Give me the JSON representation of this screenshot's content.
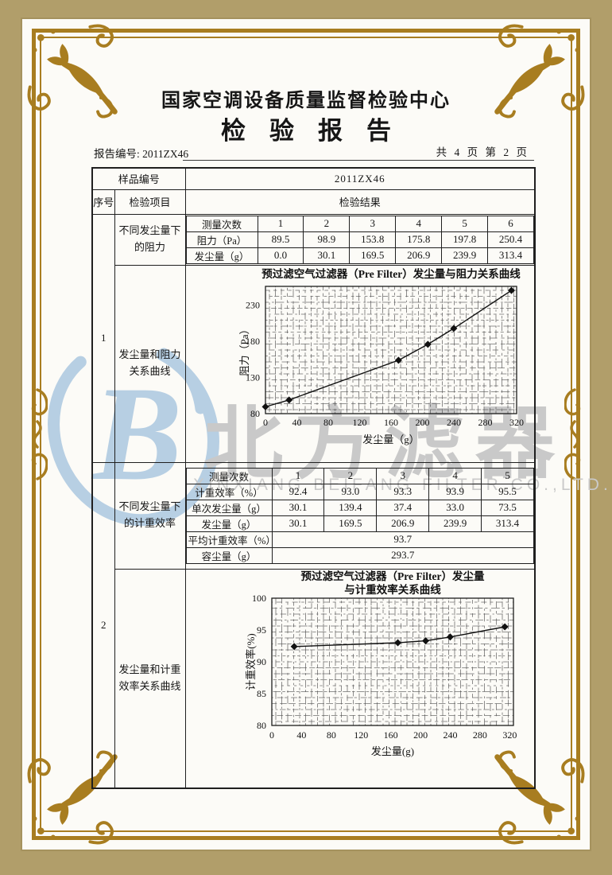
{
  "header": {
    "center_name": "国家空调设备质量监督检验中心",
    "report_title": "检验报告",
    "report_no": "报告编号: 2011ZX46",
    "page_info": "共 4 页 第 2 页"
  },
  "sample": {
    "label": "样品编号",
    "value": "2011ZX46"
  },
  "table": {
    "col_headers": {
      "seq": "序号",
      "item": "检验项目",
      "result": "检验结果"
    },
    "groups": [
      {
        "seq": "1",
        "item1": "不同发尘量下的阻力",
        "item2": "发尘量和阻力关系曲线",
        "inner_table": {
          "rows": [
            {
              "label": "测量次数",
              "values": [
                "1",
                "2",
                "3",
                "4",
                "5",
                "6"
              ]
            },
            {
              "label": "阻力（Pa）",
              "values": [
                "89.5",
                "98.9",
                "153.8",
                "175.8",
                "197.8",
                "250.4"
              ]
            },
            {
              "label": "发尘量（g）",
              "values": [
                "0.0",
                "30.1",
                "169.5",
                "206.9",
                "239.9",
                "313.4"
              ]
            }
          ]
        }
      },
      {
        "seq": "2",
        "item1": "不同发尘量下的计重效率",
        "item2": "发尘量和计重效率关系曲线",
        "inner_table": {
          "rows": [
            {
              "label": "测量次数",
              "values": [
                "1",
                "2",
                "3",
                "4",
                "5"
              ]
            },
            {
              "label": "计重效率（%）",
              "values": [
                "92.4",
                "93.0",
                "93.3",
                "93.9",
                "95.5"
              ]
            },
            {
              "label": "单次发尘量（g）",
              "values": [
                "30.1",
                "139.4",
                "37.4",
                "33.0",
                "73.5"
              ]
            },
            {
              "label": "发尘量（g）",
              "values": [
                "30.1",
                "169.5",
                "206.9",
                "239.9",
                "313.4"
              ]
            }
          ],
          "summary_rows": [
            {
              "label": "平均计重效率（%）",
              "value": "93.7"
            },
            {
              "label": "容尘量（g）",
              "value": "293.7"
            }
          ]
        }
      }
    ]
  },
  "chart_data": [
    {
      "type": "line",
      "title": "预过滤空气过滤器（Pre Filter）发尘量与阻力关系曲线",
      "xlabel": "发尘量（g）",
      "ylabel": "阻力（Pa）",
      "x": [
        0,
        30.1,
        169.5,
        206.9,
        239.9,
        313.4
      ],
      "y": [
        89.5,
        98.9,
        153.8,
        175.8,
        197.8,
        250.4
      ],
      "xlim": [
        0,
        320
      ],
      "ylim": [
        80,
        256
      ],
      "xticks": [
        0,
        40,
        80,
        120,
        160,
        200,
        240,
        280,
        320
      ],
      "yticks": [
        80,
        130,
        180,
        230
      ],
      "grid": "dense",
      "legend": "none",
      "marker": "diamond"
    },
    {
      "type": "line",
      "title": "预过滤空气过滤器（Pre Filter）发尘量",
      "title2": "与计重效率关系曲线",
      "xlabel": "发尘量(g)",
      "ylabel": "计重效率(%)",
      "x": [
        30.1,
        169.5,
        206.9,
        239.9,
        313.4
      ],
      "y": [
        92.4,
        93.0,
        93.3,
        93.9,
        95.5
      ],
      "xlim": [
        0,
        325
      ],
      "ylim": [
        80,
        100
      ],
      "xticks": [
        0,
        40,
        80,
        120,
        160,
        200,
        240,
        280,
        320
      ],
      "yticks": [
        80,
        85,
        90,
        95,
        100
      ],
      "grid": "dense",
      "legend": "none",
      "marker": "diamond"
    }
  ],
  "watermark": {
    "logo_letter": "B",
    "cjk_text": "北方滤器",
    "latin_text": "XINXIANG BEIFANG FILTER CO.,LTD."
  },
  "colors": {
    "frame_gold": "#a87d20",
    "outer_margin": "#b19e6a",
    "page_bg": "#fcfbf7",
    "table_border": "#1f1f1f",
    "watermark_gray": "#c9c9c9",
    "watermark_blue": "#b7cfe3",
    "curve_color": "#111111"
  }
}
